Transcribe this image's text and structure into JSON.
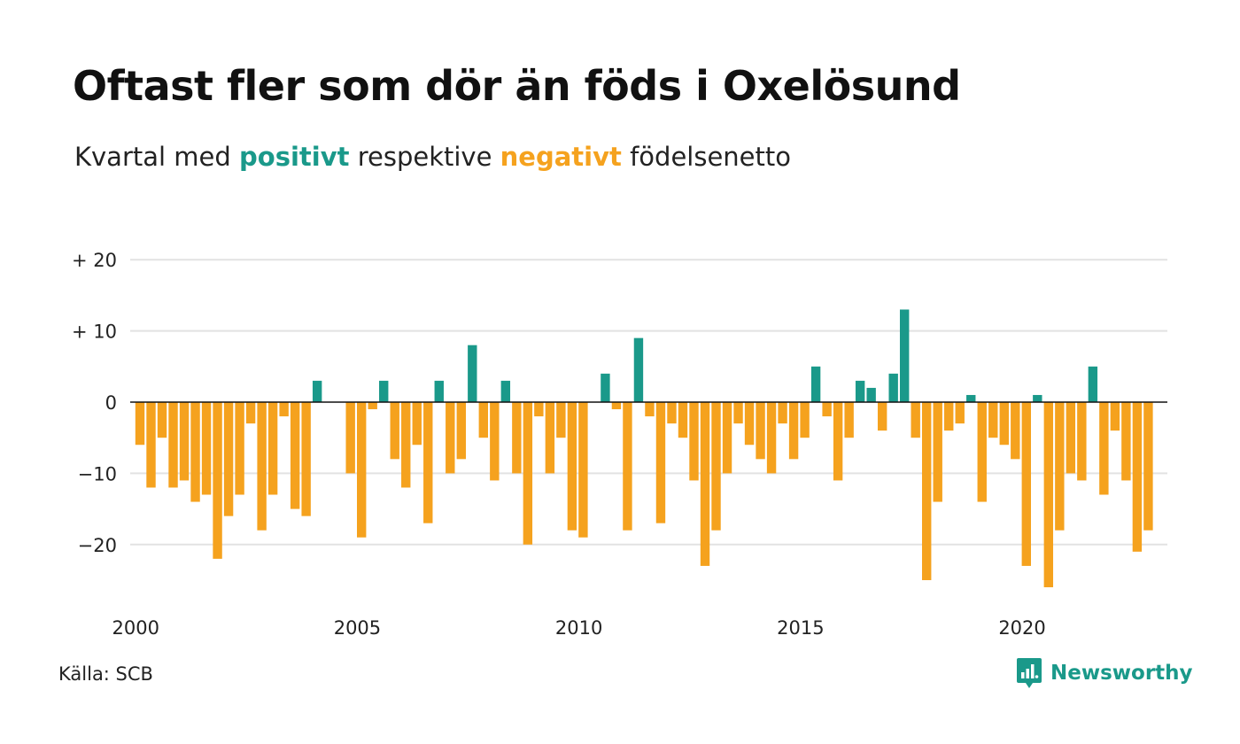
{
  "header": {
    "title": "Oftast fler som dör än föds i Oxelösund",
    "subtitle_pre": "Kvartal med ",
    "subtitle_pos": "positivt",
    "subtitle_mid": " respektive ",
    "subtitle_neg": "negativt",
    "subtitle_post": " födelsenetto"
  },
  "footer": {
    "source": "Källa: SCB",
    "brand": "Newsworthy",
    "brand_icon": "newsworthy-logo-icon"
  },
  "colors": {
    "positive": "#1a998a",
    "negative": "#f5a21e",
    "grid": "#e2e2e2",
    "zero_line": "#111111"
  },
  "chart_data": {
    "type": "bar",
    "title": "Oftast fler som dör än föds i Oxelösund",
    "subtitle": "Kvartal med positivt respektive negativt födelsenetto",
    "xlabel": "",
    "ylabel": "",
    "ylim": [
      -27,
      20
    ],
    "grid": true,
    "y_ticks": [
      {
        "value": 20,
        "label": "+ 20"
      },
      {
        "value": 10,
        "label": "+ 10"
      },
      {
        "value": 0,
        "label": "0"
      },
      {
        "value": -10,
        "label": "−10"
      },
      {
        "value": -20,
        "label": "−20"
      }
    ],
    "x_ticks": [
      {
        "value": 2000,
        "label": "2000"
      },
      {
        "value": 2005,
        "label": "2005"
      },
      {
        "value": 2010,
        "label": "2010"
      },
      {
        "value": 2015,
        "label": "2015"
      },
      {
        "value": 2020,
        "label": "2020"
      }
    ],
    "start_year": 2000,
    "periods_per_year": 4,
    "values": [
      -6,
      -12,
      -5,
      -12,
      -11,
      -14,
      -13,
      -22,
      -16,
      -13,
      -3,
      -18,
      -13,
      -2,
      -15,
      -16,
      3,
      0,
      0,
      -10,
      -19,
      -1,
      3,
      -8,
      -12,
      -6,
      -17,
      3,
      -10,
      -8,
      8,
      -5,
      -11,
      3,
      -10,
      -20,
      -2,
      -10,
      -5,
      -18,
      -19,
      0,
      4,
      -1,
      -18,
      9,
      -2,
      -17,
      -3,
      -5,
      -11,
      -23,
      -18,
      -10,
      -3,
      -6,
      -8,
      -10,
      -3,
      -8,
      -5,
      5,
      -2,
      -11,
      -5,
      3,
      2,
      -4,
      4,
      13,
      -5,
      -25,
      -14,
      -4,
      -3,
      1,
      -14,
      -5,
      -6,
      -8,
      -23,
      1,
      -26,
      -18,
      -10,
      -11,
      5,
      -13,
      -4,
      -11,
      -21,
      -18
    ]
  }
}
